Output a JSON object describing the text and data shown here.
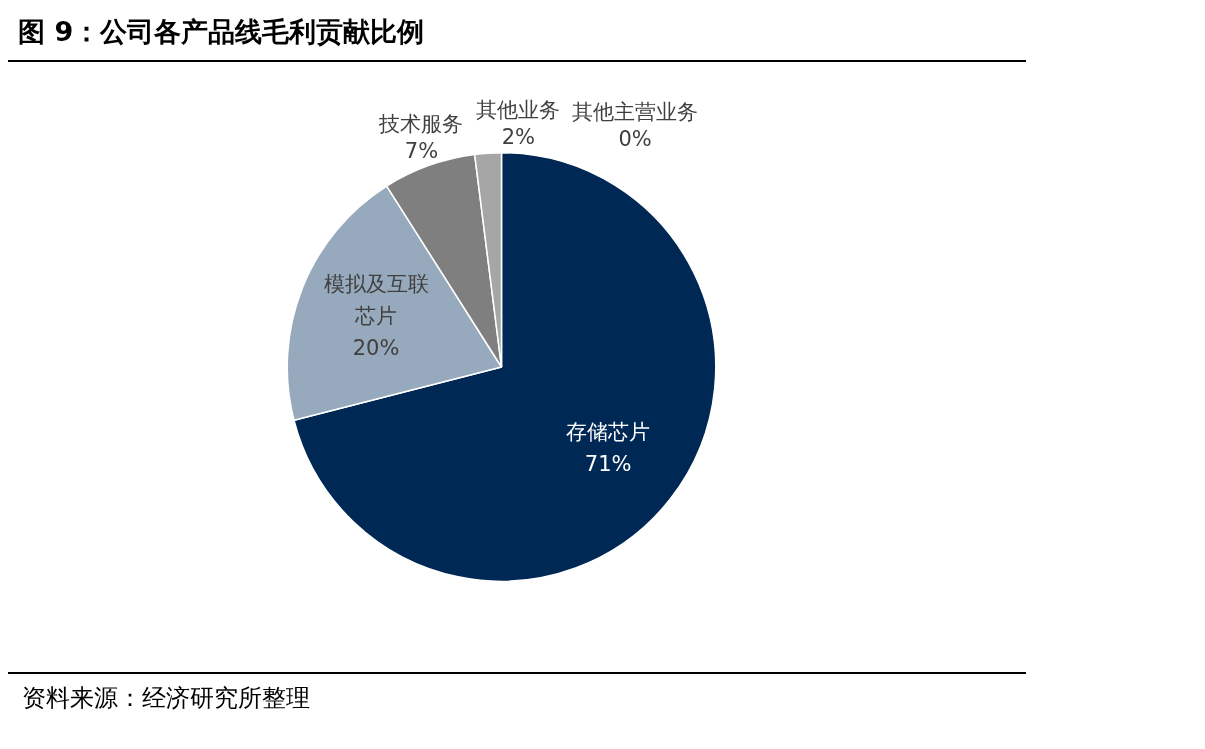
{
  "chart_data": {
    "type": "pie",
    "title": "图 9：公司各产品线毛利贡献比例",
    "categories": [
      "存储芯片",
      "模拟及互联芯片",
      "技术服务",
      "其他主营业务",
      "其他业务"
    ],
    "values": [
      71,
      20,
      7,
      0,
      2
    ],
    "value_labels": [
      "71%",
      "20%",
      "7%",
      "0%",
      "2%"
    ],
    "colors": [
      "#002855",
      "#97a9bc",
      "#7f7f7f",
      "#d9d9d9",
      "#a6a6a6"
    ],
    "legend": false,
    "annotations": [
      "资料来源：经济研究所整理"
    ]
  }
}
